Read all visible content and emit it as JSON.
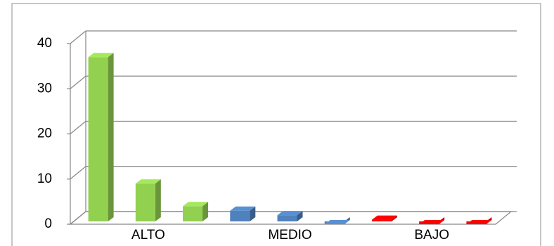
{
  "chart_data": {
    "type": "bar3d",
    "categories": [
      null,
      "ALTO",
      null,
      null,
      "MEDIO",
      null,
      null,
      "BAJO",
      null
    ],
    "values": [
      37,
      9,
      4,
      3,
      2,
      0,
      1,
      0,
      0
    ],
    "colors": [
      "#92d050",
      "#92d050",
      "#92d050",
      "#4f81bd",
      "#4f81bd",
      "#4f81bd",
      "#ff0000",
      "#ff0000",
      "#ff0000"
    ],
    "ylim": [
      0,
      40
    ],
    "yticks": [
      0,
      10,
      20,
      30,
      40
    ],
    "grid": true
  }
}
